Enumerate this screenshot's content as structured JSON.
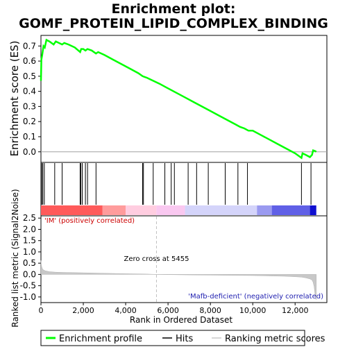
{
  "chart_data": {
    "type": "line",
    "title_line1": "Enrichment plot:",
    "title_line2": "GOMF_PROTEIN_LIPID_COMPLEX_BINDING",
    "es_panel": {
      "ylabel": "Enrichment score (ES)",
      "ylim": [
        -0.07,
        0.77
      ],
      "yticks": [
        0.0,
        0.1,
        0.2,
        0.3,
        0.4,
        0.5,
        0.6,
        0.7
      ],
      "ytick_labels": [
        "0.0",
        "0.1",
        "0.2",
        "0.3",
        "0.4",
        "0.5",
        "0.6",
        "0.7"
      ],
      "series": [
        {
          "name": "Enrichment profile",
          "color": "#00ff00",
          "x": [
            0,
            20,
            60,
            120,
            180,
            260,
            400,
            600,
            700,
            850,
            1000,
            1100,
            1300,
            1600,
            1850,
            1900,
            2000,
            2100,
            2200,
            2400,
            2600,
            2700,
            3000,
            3400,
            3800,
            4200,
            4600,
            4800,
            4900,
            5000,
            5300,
            5600,
            6000,
            6400,
            6800,
            7200,
            7600,
            8000,
            8400,
            8800,
            9200,
            9400,
            9600,
            9800,
            10000,
            10400,
            10800,
            11200,
            11600,
            12000,
            12300,
            12350,
            12500,
            12700,
            12800,
            12850,
            12950,
            13000
          ],
          "y": [
            0.47,
            0.61,
            0.64,
            0.7,
            0.69,
            0.74,
            0.73,
            0.71,
            0.73,
            0.72,
            0.71,
            0.72,
            0.71,
            0.69,
            0.66,
            0.68,
            0.68,
            0.67,
            0.68,
            0.67,
            0.65,
            0.66,
            0.64,
            0.61,
            0.58,
            0.55,
            0.52,
            0.5,
            0.495,
            0.49,
            0.47,
            0.45,
            0.42,
            0.39,
            0.36,
            0.33,
            0.3,
            0.27,
            0.24,
            0.21,
            0.18,
            0.165,
            0.155,
            0.14,
            0.14,
            0.11,
            0.08,
            0.05,
            0.02,
            -0.01,
            -0.04,
            -0.01,
            -0.02,
            -0.035,
            -0.02,
            0.01,
            0.005,
            0.0
          ]
        }
      ]
    },
    "hits_panel": {
      "hit_positions": [
        40,
        90,
        160,
        650,
        1000,
        1850,
        1880,
        1950,
        2100,
        2200,
        2600,
        4800,
        4840,
        5300,
        5850,
        6150,
        6300,
        6950,
        7350,
        7900,
        8700,
        9300,
        9750,
        12300,
        12750
      ],
      "color_band": [
        {
          "from": 0,
          "to": 2900,
          "color": "#ff5a5a"
        },
        {
          "from": 2900,
          "to": 4000,
          "color": "#ff9c9c"
        },
        {
          "from": 4000,
          "to": 5450,
          "color": "#ffcde0"
        },
        {
          "from": 5450,
          "to": 6800,
          "color": "#f9c8f0"
        },
        {
          "from": 6800,
          "to": 10200,
          "color": "#d4d4fa"
        },
        {
          "from": 10200,
          "to": 10900,
          "color": "#9a9af0"
        },
        {
          "from": 10900,
          "to": 12700,
          "color": "#6060e6"
        },
        {
          "from": 12700,
          "to": 13000,
          "color": "#1010d0"
        }
      ]
    },
    "metric_panel": {
      "ylabel": "Ranked list metric (Signal2Noise)",
      "ylim": [
        -1.25,
        2.6
      ],
      "yticks": [
        -1.0,
        -0.5,
        0.0,
        0.5,
        1.0,
        1.5,
        2.0,
        2.5
      ],
      "ytick_labels": [
        "-1.0",
        "-0.5",
        "0.0",
        "0.5",
        "1.0",
        "1.5",
        "2.0",
        "2.5"
      ],
      "color": "#c8c8c8",
      "x": [
        0,
        10,
        30,
        60,
        100,
        200,
        400,
        700,
        1000,
        2000,
        3000,
        4000,
        5000,
        5455,
        6000,
        7000,
        8000,
        9000,
        10000,
        11000,
        11500,
        12000,
        12300,
        12500,
        12700,
        12800,
        12850,
        12900,
        12950,
        13000
      ],
      "y": [
        0.62,
        0.48,
        0.36,
        0.27,
        0.21,
        0.16,
        0.12,
        0.1,
        0.09,
        0.07,
        0.05,
        0.03,
        0.015,
        0.0,
        -0.01,
        -0.02,
        -0.03,
        -0.04,
        -0.05,
        -0.07,
        -0.08,
        -0.1,
        -0.12,
        -0.15,
        -0.2,
        -0.25,
        -0.35,
        -0.55,
        -0.95,
        -1.12
      ],
      "zero_cross_label": "Zero cross at 5455",
      "pos_label": "'IM' (positively correlated)",
      "neg_label": "'Mafb-deficient' (negatively correlated)",
      "zero_cross_x": 5455
    },
    "x_axis": {
      "xlabel": "Rank in Ordered Dataset",
      "xlim": [
        0,
        13500
      ],
      "xticks": [
        0,
        2000,
        4000,
        6000,
        8000,
        10000,
        12000
      ],
      "xtick_labels": [
        "0",
        "2,000",
        "4,000",
        "6,000",
        "8,000",
        "10,000",
        "12,000"
      ]
    },
    "legend": {
      "placement": "bottom",
      "items": [
        {
          "label": "Enrichment profile",
          "color": "#00ff00",
          "kind": "thick-line"
        },
        {
          "label": "Hits",
          "color": "#000000",
          "kind": "line"
        },
        {
          "label": "Ranking metric scores",
          "color": "#c8c8c8",
          "kind": "line"
        }
      ]
    }
  }
}
